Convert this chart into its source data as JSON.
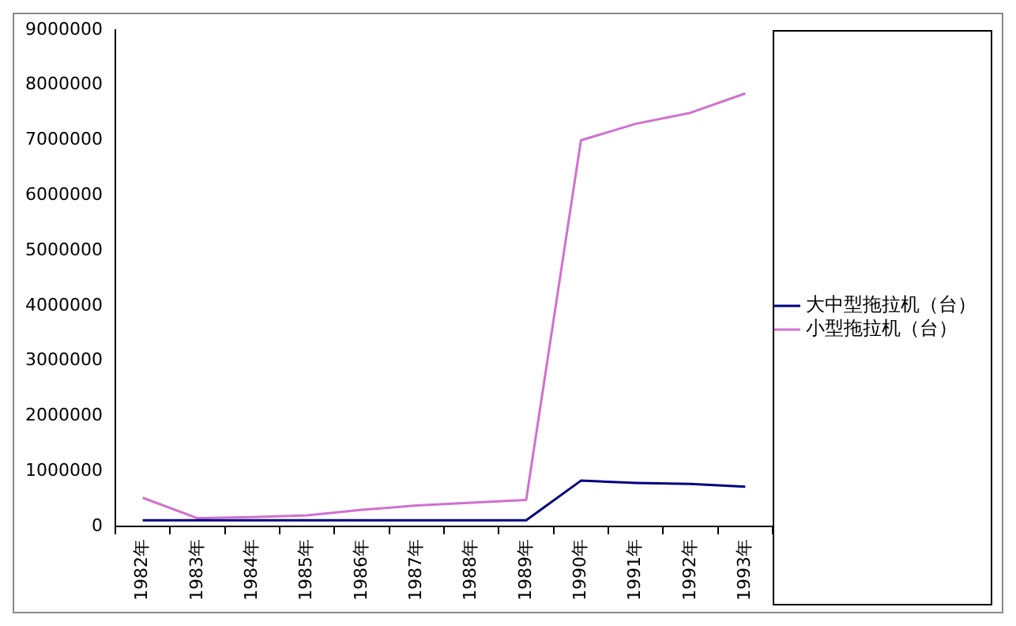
{
  "chart_data": {
    "type": "line",
    "categories": [
      "1982年",
      "1983年",
      "1984年",
      "1985年",
      "1986年",
      "1987年",
      "1988年",
      "1989年",
      "1990年",
      "1991年",
      "1992年",
      "1993年"
    ],
    "series": [
      {
        "name": "大中型拖拉机（台）",
        "color": "#000080",
        "values": [
          110000,
          110000,
          110000,
          110000,
          110000,
          110000,
          110000,
          110000,
          830000,
          790000,
          770000,
          720000
        ]
      },
      {
        "name": "小型拖拉机（台）",
        "color": "#d070d0",
        "values": [
          520000,
          150000,
          170000,
          200000,
          300000,
          380000,
          430000,
          480000,
          7000000,
          7300000,
          7500000,
          7850000
        ]
      }
    ],
    "ylim": [
      0,
      9000000
    ],
    "yticks": [
      0,
      1000000,
      2000000,
      3000000,
      4000000,
      5000000,
      6000000,
      7000000,
      8000000,
      9000000
    ],
    "grid": false,
    "legend": "right",
    "marker": "none",
    "line_style": "solid"
  }
}
